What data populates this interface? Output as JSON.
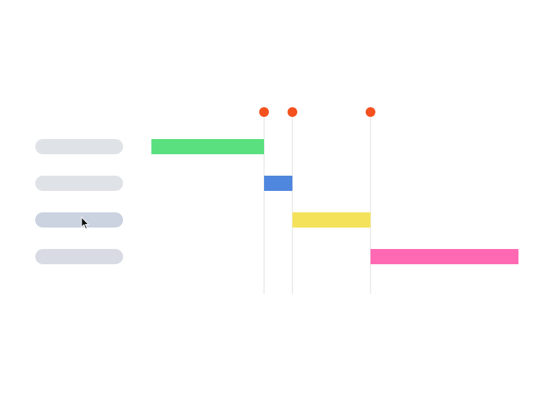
{
  "gantt": {
    "rows": [
      {
        "color": "#5ae07f",
        "label_color": "#dfe2e7"
      },
      {
        "color": "#4f87de",
        "label_color": "#dfe2e7"
      },
      {
        "color": "#f4e35a",
        "label_color": "#cbd2e0"
      },
      {
        "color": "#ff69b4",
        "label_color": "#d8dbe3"
      }
    ],
    "milestone_color": "#f4511e",
    "line_color": "#dddddd"
  }
}
